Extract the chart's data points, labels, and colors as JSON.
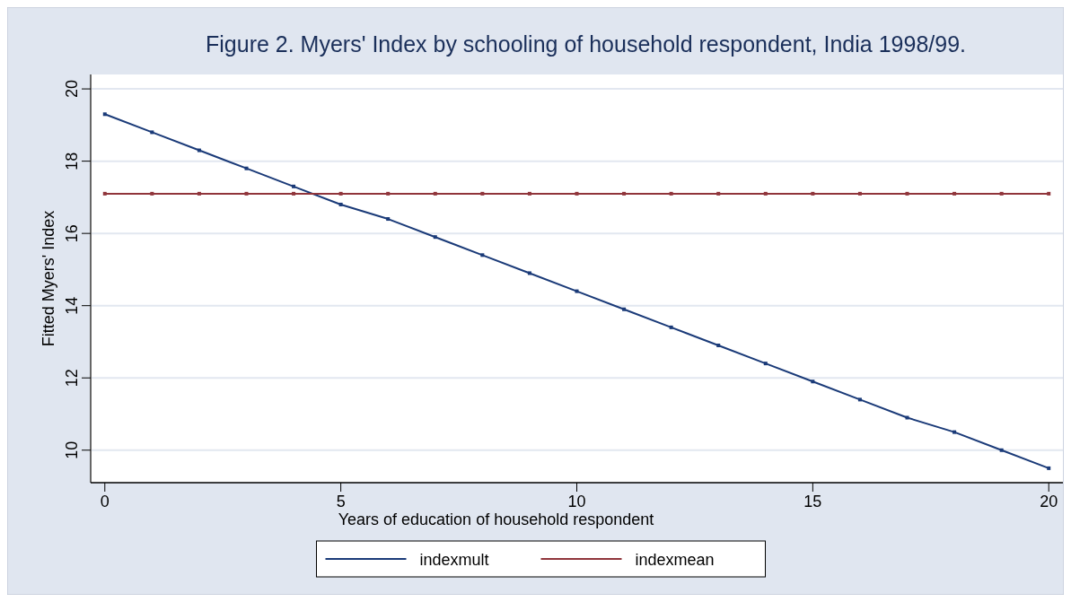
{
  "chart_data": {
    "type": "line",
    "title": "Figure 2.  Myers' Index by schooling of household respondent, India 1998/99.",
    "xlabel": "Years of education of household respondent",
    "ylabel": "Fitted Myers' Index",
    "x": [
      0,
      1,
      2,
      3,
      4,
      5,
      6,
      7,
      8,
      9,
      10,
      11,
      12,
      13,
      14,
      15,
      16,
      17,
      18,
      19,
      20
    ],
    "series": [
      {
        "name": "indexmult",
        "color": "#1a3a78",
        "values": [
          19.3,
          18.8,
          18.3,
          17.8,
          17.3,
          16.8,
          16.4,
          15.9,
          15.4,
          14.9,
          14.4,
          13.9,
          13.4,
          12.9,
          12.4,
          11.9,
          11.4,
          10.9,
          10.5,
          10.0,
          9.5
        ]
      },
      {
        "name": "indexmean",
        "color": "#90353b",
        "values": [
          17.1,
          17.1,
          17.1,
          17.1,
          17.1,
          17.1,
          17.1,
          17.1,
          17.1,
          17.1,
          17.1,
          17.1,
          17.1,
          17.1,
          17.1,
          17.1,
          17.1,
          17.1,
          17.1,
          17.1,
          17.1
        ]
      }
    ],
    "xlim": [
      -0.3,
      20.3
    ],
    "xticks": [
      0,
      5,
      10,
      15,
      20
    ],
    "ylim": [
      9.1,
      20.4
    ],
    "yticks": [
      10,
      12,
      14,
      16,
      18,
      20
    ],
    "grid": "y",
    "legend": "bottom",
    "marker": "square",
    "line_style": "solid"
  }
}
